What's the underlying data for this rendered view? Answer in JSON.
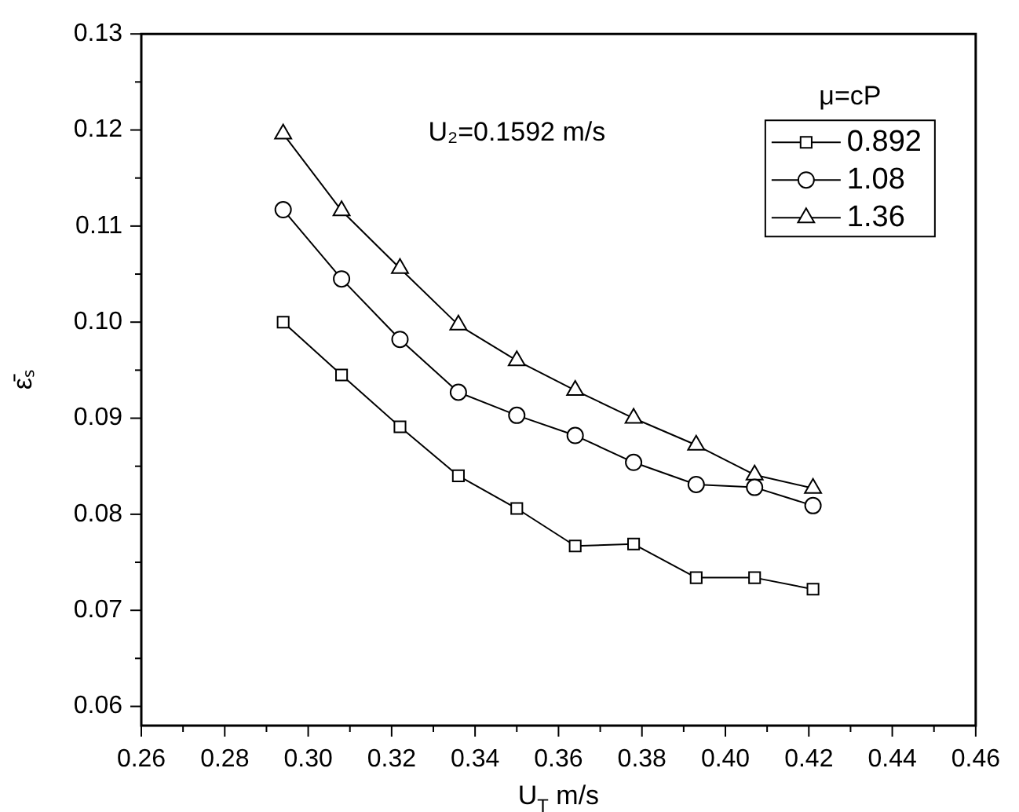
{
  "chart_data": {
    "type": "line",
    "xlabel": "U$_{T}$ m/s",
    "ylabel": "ε̄ₛ",
    "legend_title": "μ=cP",
    "annotations": [
      "U₂=0.1592 m/s"
    ],
    "x": [
      0.294,
      0.308,
      0.322,
      0.336,
      0.35,
      0.364,
      0.378,
      0.393,
      0.407,
      0.421
    ],
    "series": [
      {
        "name": "0.892",
        "color": "#000000",
        "marker": "square",
        "values": [
          0.1,
          0.0945,
          0.0891,
          0.084,
          0.0806,
          0.0767,
          0.0769,
          0.0734,
          0.0734,
          0.0722
        ]
      },
      {
        "name": "1.08",
        "color": "#000000",
        "marker": "circle",
        "values": [
          0.1117,
          0.1045,
          0.0982,
          0.0927,
          0.0903,
          0.0882,
          0.0854,
          0.0831,
          0.0828,
          0.0809
        ]
      },
      {
        "name": "1.36",
        "color": "#000000",
        "marker": "triangle",
        "values": [
          0.1196,
          0.1116,
          0.1056,
          0.0997,
          0.096,
          0.0929,
          0.09,
          0.0872,
          0.0841,
          0.0827
        ]
      }
    ],
    "xlim": [
      0.26,
      0.46
    ],
    "xticks": [
      0.26,
      {
        "value": 0.27,
        "label": null
      },
      0.28,
      {
        "value": 0.29,
        "label": null
      },
      {
        "value": 0.3,
        "label": "0.30"
      },
      {
        "value": 0.31,
        "label": null
      },
      0.32,
      {
        "value": 0.33,
        "label": null
      },
      0.34,
      {
        "value": 0.35,
        "label": null
      },
      0.36,
      {
        "value": 0.37,
        "label": null
      },
      0.38,
      {
        "value": 0.39,
        "label": null
      },
      {
        "value": 0.4,
        "label": "0.40"
      },
      {
        "value": 0.41,
        "label": null
      },
      0.42,
      {
        "value": 0.43,
        "label": null
      },
      0.44,
      {
        "value": 0.45,
        "label": null
      },
      0.46
    ],
    "ylim": [
      0.058,
      0.13
    ],
    "yticks": [
      0.06,
      {
        "value": 0.065,
        "label": null
      },
      0.07,
      {
        "value": 0.075,
        "label": null
      },
      0.08,
      {
        "value": 0.085,
        "label": null
      },
      0.09,
      {
        "value": 0.095,
        "label": null
      },
      {
        "value": 0.1,
        "label": "0.10"
      },
      {
        "value": 0.105,
        "label": null
      },
      0.11,
      {
        "value": 0.115,
        "label": null
      },
      0.12,
      {
        "value": 0.125,
        "label": null
      },
      0.13
    ],
    "legend": "top right",
    "grid": false,
    "line_style": "solid"
  }
}
